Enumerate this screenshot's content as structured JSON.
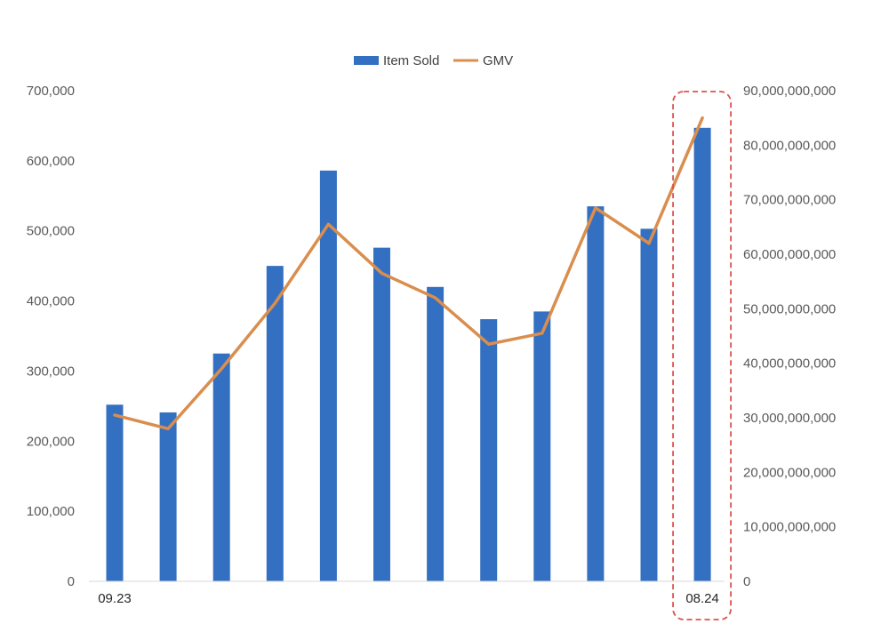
{
  "chart_data": {
    "type": "bar",
    "categories": [
      "09.23",
      "",
      "",
      "",
      "",
      "",
      "",
      "",
      "",
      "",
      "",
      "08.24"
    ],
    "series": [
      {
        "name": "Item Sold",
        "type": "bar",
        "axis": "left",
        "color": "#3470C2",
        "values": [
          252000,
          241000,
          325000,
          450000,
          586000,
          476000,
          420000,
          374000,
          385000,
          535000,
          503000,
          647000
        ]
      },
      {
        "name": "GMV",
        "type": "line",
        "axis": "right",
        "color": "#D98E4E",
        "values": [
          30500000000,
          28000000000,
          39000000000,
          51000000000,
          65500000000,
          56500000000,
          52000000000,
          43500000000,
          45500000000,
          68500000000,
          62000000000,
          85000000000
        ]
      }
    ],
    "y_left": {
      "ylim": [
        0,
        700000
      ],
      "ticks": [
        "0",
        "100,000",
        "200,000",
        "300,000",
        "400,000",
        "500,000",
        "600,000",
        "700,000"
      ]
    },
    "y_right": {
      "ylim": [
        0,
        90000000000
      ],
      "ticks": [
        "0",
        "10,000,000,000",
        "20,000,000,000",
        "30,000,000,000",
        "40,000,000,000",
        "50,000,000,000",
        "60,000,000,000",
        "70,000,000,000",
        "80,000,000,000",
        "90,000,000,000"
      ]
    },
    "legend": {
      "position": "top-center",
      "items": [
        "Item Sold",
        "GMV"
      ]
    },
    "highlight": {
      "category": "08.24",
      "style": "dashed-box",
      "color": "#D9534F"
    },
    "grid": false
  }
}
